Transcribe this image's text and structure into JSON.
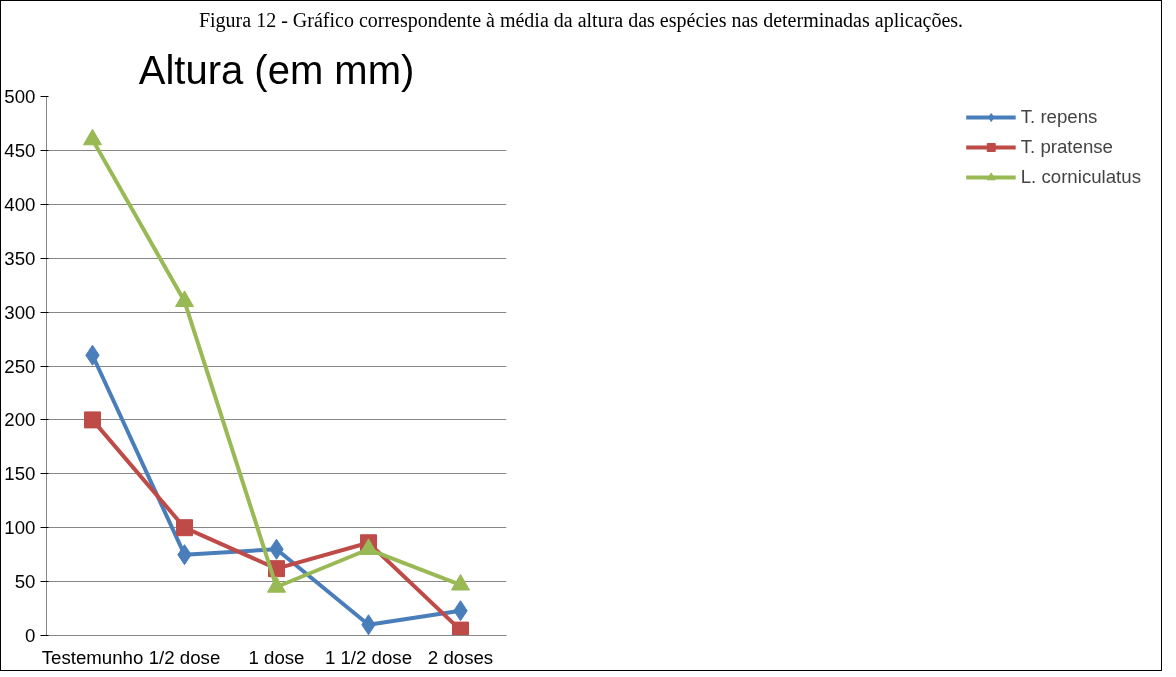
{
  "chart_data": {
    "type": "line",
    "title": "Altura (em mm)",
    "annotations": [
      "Figura 12 - Gráfico correspondente à média da altura das espécies nas determinadas aplicações."
    ],
    "categories": [
      "Testemunho",
      "1/2 dose",
      "1 dose",
      "1 1/2 dose",
      "2 doses"
    ],
    "series": [
      {
        "name": "T. repens",
        "color": "#4a7ebb",
        "marker": "diamond",
        "values": [
          260,
          75,
          80,
          10,
          23
        ]
      },
      {
        "name": "T. pratense",
        "color": "#be4b48",
        "marker": "square",
        "values": [
          200,
          100,
          62,
          86,
          5
        ]
      },
      {
        "name": "L. corniculatus",
        "color": "#98b954",
        "marker": "triangle",
        "values": [
          460,
          310,
          45,
          80,
          47
        ]
      }
    ],
    "ylim": [
      0,
      500
    ],
    "yticks": [
      0,
      50,
      100,
      150,
      200,
      250,
      300,
      350,
      400,
      450,
      500
    ],
    "grid": "y",
    "legend": "right"
  }
}
